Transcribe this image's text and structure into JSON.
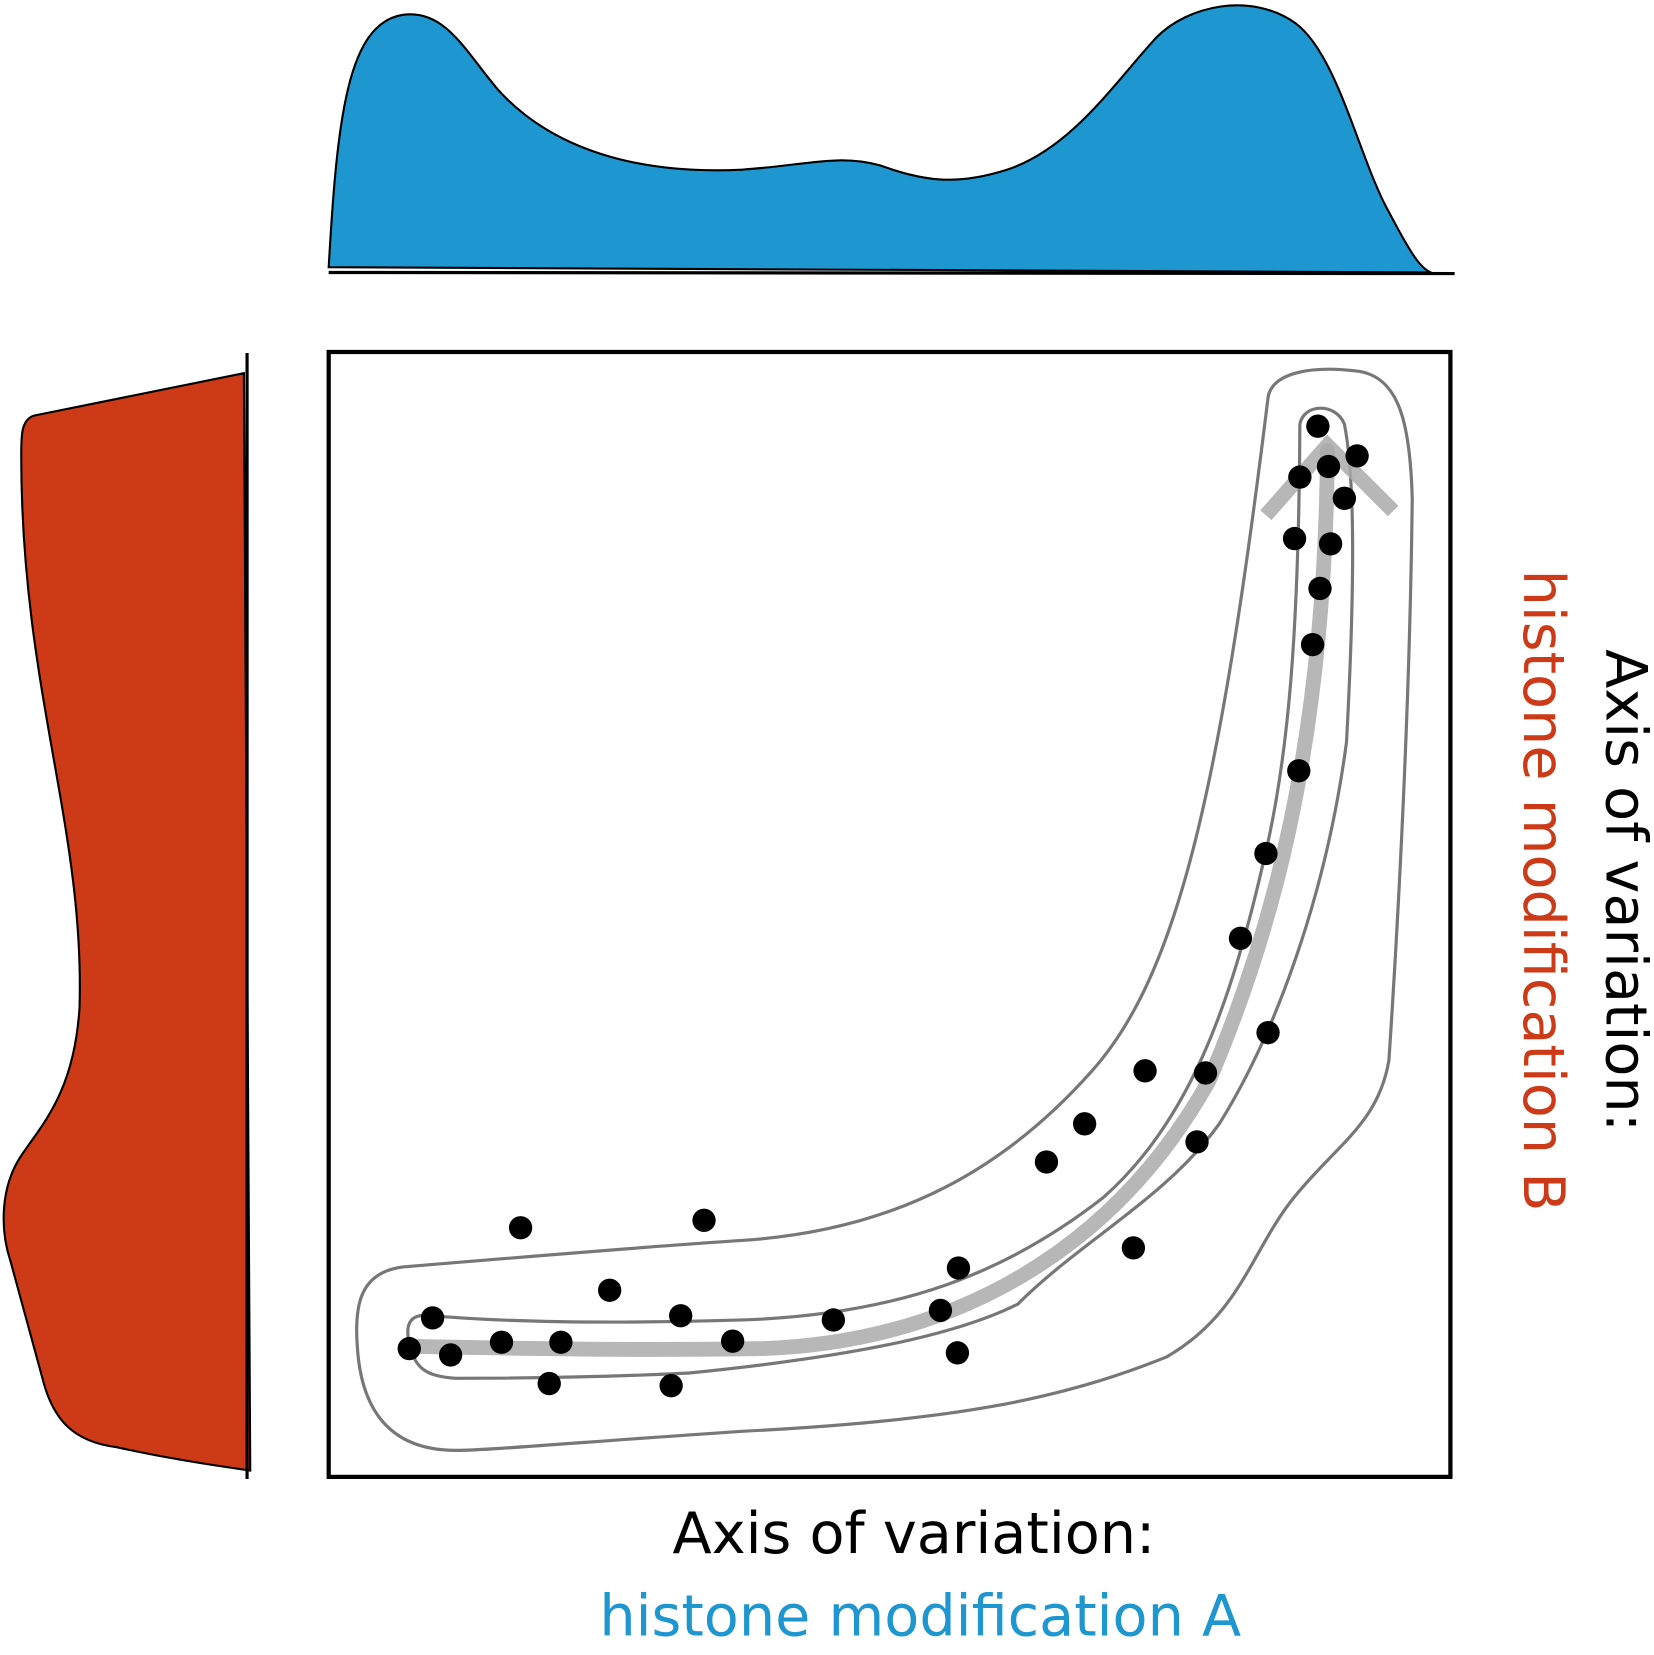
{
  "x_axis": {
    "line1": "Axis of variation:",
    "line2": "histone modification A"
  },
  "y_axis": {
    "line1": "Axis of variation:",
    "line2": "histone modification B"
  }
}
